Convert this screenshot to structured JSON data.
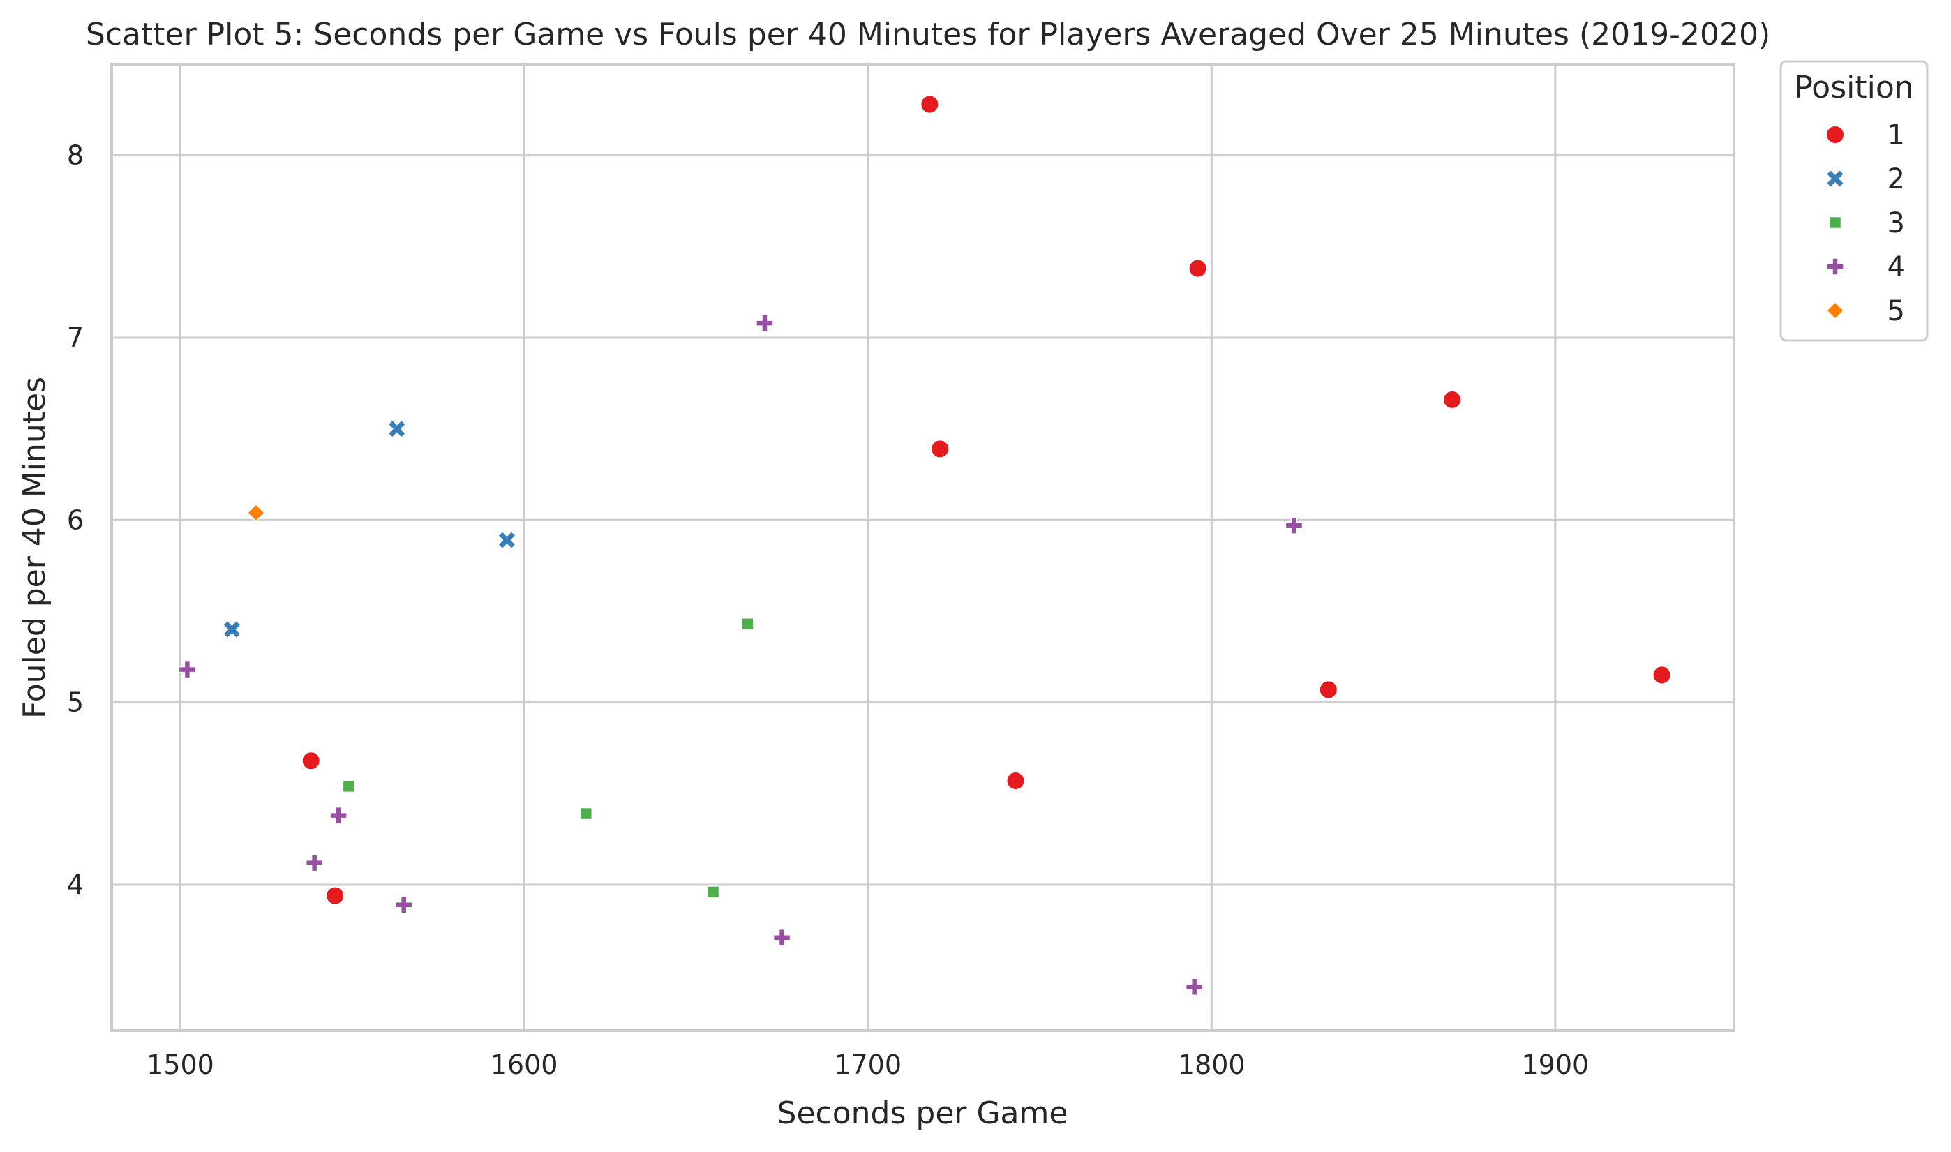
{
  "chart_data": {
    "type": "scatter",
    "title": "Scatter Plot 5: Seconds per Game vs Fouls per 40 Minutes for Players Averaged Over 25 Minutes (2019-2020)",
    "xlabel": "Seconds per Game",
    "ylabel": "Fouled per 40 Minutes",
    "xlim": [
      1480,
      1952
    ],
    "ylim": [
      3.2,
      8.5
    ],
    "xticks": [
      1500,
      1600,
      1700,
      1800,
      1900
    ],
    "yticks": [
      4,
      5,
      6,
      7,
      8
    ],
    "grid": true,
    "legend": {
      "title": "Position",
      "placement": "outside-top-right"
    },
    "series": [
      {
        "name": "1",
        "marker": "circle",
        "color": "#e41a1c",
        "points": [
          [
            1718,
            8.28
          ],
          [
            1796,
            7.38
          ],
          [
            1870,
            6.66
          ],
          [
            1721,
            6.39
          ],
          [
            1834,
            5.07
          ],
          [
            1931,
            5.15
          ],
          [
            1743,
            4.57
          ],
          [
            1538,
            4.68
          ],
          [
            1545,
            3.94
          ]
        ]
      },
      {
        "name": "2",
        "marker": "x",
        "color": "#377eb8",
        "points": [
          [
            1563,
            6.5
          ],
          [
            1595,
            5.89
          ],
          [
            1515,
            5.4
          ]
        ]
      },
      {
        "name": "3",
        "marker": "square",
        "color": "#4daf4a",
        "points": [
          [
            1665,
            5.43
          ],
          [
            1549,
            4.54
          ],
          [
            1618,
            4.39
          ],
          [
            1655,
            3.96
          ]
        ]
      },
      {
        "name": "4",
        "marker": "plus",
        "color": "#984ea3",
        "points": [
          [
            1670,
            7.08
          ],
          [
            1824,
            5.97
          ],
          [
            1502,
            5.18
          ],
          [
            1546,
            4.38
          ],
          [
            1539,
            4.12
          ],
          [
            1565,
            3.89
          ],
          [
            1675,
            3.71
          ],
          [
            1795,
            3.44
          ]
        ]
      },
      {
        "name": "5",
        "marker": "diamond",
        "color": "#ff7f00",
        "points": [
          [
            1522,
            6.04
          ]
        ]
      }
    ]
  }
}
